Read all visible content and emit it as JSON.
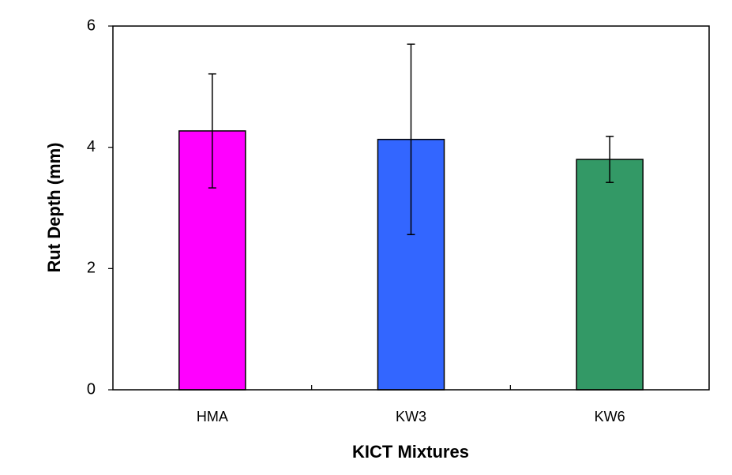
{
  "chart_data": {
    "type": "bar",
    "x_label": "KICT Mixtures",
    "y_label": "Rut Depth (mm)",
    "categories": [
      "HMA",
      "KW3",
      "KW6"
    ],
    "values": [
      4.27,
      4.13,
      3.8
    ],
    "errors": [
      0.94,
      1.57,
      0.38
    ],
    "colors": [
      "#ff00ff",
      "#3366ff",
      "#339966"
    ],
    "ylim": [
      0,
      6
    ],
    "yticks": [
      0,
      2,
      4,
      6
    ],
    "grid": false
  }
}
